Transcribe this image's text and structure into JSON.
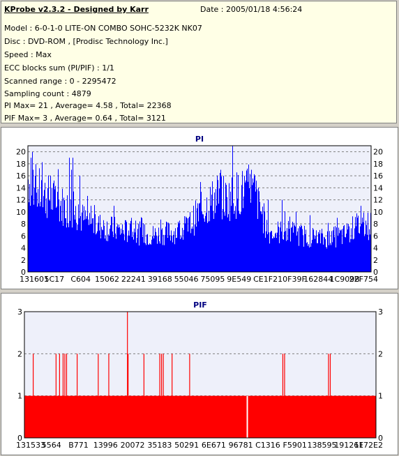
{
  "info": {
    "app_title": "KProbe v2.3.2 - Designed by Karr",
    "date_line": "Date : 2005/01/18 4:56:24",
    "lines": [
      "Model : 6-0-1-0 LITE-ON COMBO SOHC-5232K NK07",
      "Disc : DVD-ROM ,  [Prodisc Technology Inc.]",
      "Speed : Max",
      "ECC blocks sum (PI/PIF) : 1/1",
      "Scanned range : 0 - 2295472",
      "Sampling count : 4879",
      "PI Max= 21 , Average= 4.58 , Total= 22368",
      "PIF Max= 3 , Average= 0.64 , Total= 3121"
    ]
  },
  "colors": {
    "pi_fill": "#0000ff",
    "pif_fill": "#ff0000",
    "title_color": "#000080",
    "grid": "#808080"
  },
  "chart_data": [
    {
      "type": "area",
      "title": "PI",
      "ylim": [
        0,
        21
      ],
      "yticks": [
        0,
        2,
        4,
        6,
        8,
        10,
        12,
        14,
        16,
        18,
        20
      ],
      "xtick_labels": [
        "131601",
        "5C17",
        "C604",
        "15062",
        "22241",
        "39168",
        "55046",
        "75095",
        "9E549",
        "CE1F2",
        "10F39F",
        "162844",
        "1C909B",
        "22F754"
      ],
      "grid": true,
      "legend": "none",
      "profile": [
        [
          0,
          14
        ],
        [
          0.03,
          12
        ],
        [
          0.07,
          11
        ],
        [
          0.1,
          10
        ],
        [
          0.13,
          9
        ],
        [
          0.16,
          8
        ],
        [
          0.2,
          7
        ],
        [
          0.24,
          6.5
        ],
        [
          0.3,
          6
        ],
        [
          0.36,
          5.5
        ],
        [
          0.42,
          6
        ],
        [
          0.46,
          6.5
        ],
        [
          0.5,
          9
        ],
        [
          0.54,
          11
        ],
        [
          0.58,
          11
        ],
        [
          0.62,
          12
        ],
        [
          0.66,
          12
        ],
        [
          0.7,
          6
        ],
        [
          0.76,
          6
        ],
        [
          0.8,
          5.5
        ],
        [
          0.86,
          5
        ],
        [
          0.92,
          5.5
        ],
        [
          0.96,
          7
        ],
        [
          1,
          7
        ]
      ],
      "peaks": [
        [
          0.008,
          19
        ],
        [
          0.015,
          17
        ],
        [
          0.02,
          16
        ],
        [
          0.065,
          16
        ],
        [
          0.07,
          14
        ],
        [
          0.12,
          19
        ],
        [
          0.125,
          17
        ],
        [
          0.13,
          19
        ],
        [
          0.15,
          16
        ],
        [
          0.25,
          11
        ],
        [
          0.3,
          9
        ],
        [
          0.55,
          16
        ],
        [
          0.56,
          17
        ],
        [
          0.57,
          16
        ],
        [
          0.595,
          21
        ],
        [
          0.63,
          16
        ],
        [
          0.64,
          15
        ],
        [
          0.65,
          17
        ],
        [
          0.66,
          16
        ],
        [
          0.67,
          14
        ],
        [
          0.7,
          12
        ],
        [
          0.74,
          12
        ],
        [
          0.78,
          10
        ],
        [
          0.9,
          9
        ],
        [
          0.97,
          11
        ]
      ]
    },
    {
      "type": "bar",
      "title": "PIF",
      "ylim": [
        0,
        3
      ],
      "yticks": [
        0,
        1,
        2,
        3
      ],
      "xtick_labels": [
        "131533",
        "5564",
        "B771",
        "13996",
        "20072",
        "35183",
        "50291",
        "6E671",
        "96781",
        "C1316",
        "F5901",
        "138595",
        "191261",
        "1F72E2"
      ],
      "grid": true,
      "legend": "none",
      "baseline": 1,
      "gaps": [
        0.632
      ],
      "spikes": [
        [
          0.025,
          2
        ],
        [
          0.09,
          2
        ],
        [
          0.1,
          2
        ],
        [
          0.11,
          2
        ],
        [
          0.115,
          2
        ],
        [
          0.12,
          2
        ],
        [
          0.15,
          2
        ],
        [
          0.21,
          2
        ],
        [
          0.24,
          2
        ],
        [
          0.293,
          3
        ],
        [
          0.295,
          2
        ],
        [
          0.34,
          2
        ],
        [
          0.385,
          2
        ],
        [
          0.39,
          2
        ],
        [
          0.395,
          2
        ],
        [
          0.42,
          2
        ],
        [
          0.47,
          2
        ],
        [
          0.735,
          2
        ],
        [
          0.74,
          2
        ],
        [
          0.865,
          2
        ],
        [
          0.87,
          2
        ]
      ]
    }
  ]
}
